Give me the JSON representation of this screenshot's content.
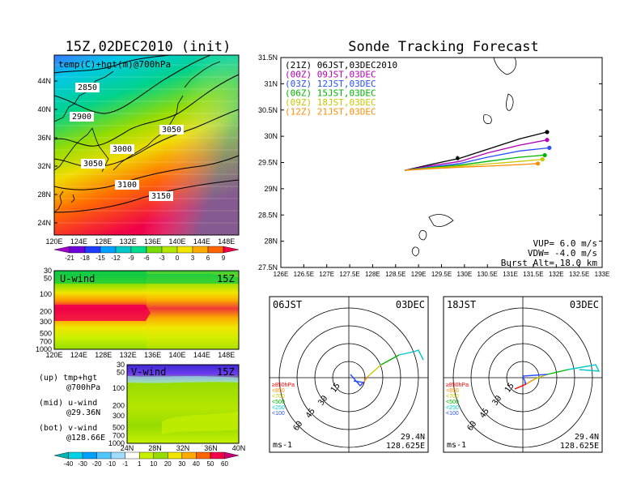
{
  "map_panel": {
    "title": "15Z,02DEC2010 (init)",
    "field_label": "temp(C)+hgt(m)@700hPa",
    "lon_ticks": [
      "120E",
      "124E",
      "128E",
      "132E",
      "136E",
      "140E",
      "144E",
      "148E"
    ],
    "lat_ticks": [
      "44N",
      "40N",
      "36N",
      "32N",
      "28N",
      "24N"
    ],
    "contour_labels": [
      "2850",
      "2900",
      "3000",
      "3050",
      "3050",
      "3100",
      "3150"
    ],
    "colorbar_labels": [
      "-21",
      "-18",
      "-15",
      "-12",
      "-9",
      "-6",
      "-3",
      "0",
      "3",
      "6",
      "9"
    ],
    "colorbar_colors": [
      "#a000c8",
      "#6e00dc",
      "#1e3cff",
      "#00a0ff",
      "#00c8c8",
      "#00dc8c",
      "#78dc00",
      "#b4e600",
      "#f0e600",
      "#ffaa00",
      "#ff6400",
      "#f00046"
    ]
  },
  "u_panel": {
    "title": "U-wind",
    "time": "15Z",
    "p_ticks": [
      "30",
      "50",
      "100",
      "200",
      "300",
      "500",
      "700",
      "1000"
    ],
    "lon_ticks": [
      "120E",
      "124E",
      "128E",
      "132E",
      "136E",
      "140E",
      "144E",
      "148E"
    ]
  },
  "v_panel": {
    "title": "V-wind",
    "time": "15Z",
    "p_ticks": [
      "30",
      "50",
      "100",
      "200",
      "300",
      "500",
      "700",
      "1000"
    ],
    "lat_ticks": [
      "24N",
      "28N",
      "32N",
      "36N",
      "40N"
    ],
    "colorbar_labels": [
      "-40",
      "-30",
      "-20",
      "-10",
      "-1",
      "1",
      "10",
      "20",
      "30",
      "40",
      "50",
      "60"
    ],
    "colorbar_colors": [
      "#00b4b4",
      "#00d2e6",
      "#00a0ff",
      "#50c8ff",
      "#a0dcff",
      "#ffffff",
      "#c8f000",
      "#96dc00",
      "#f0e600",
      "#ffaa00",
      "#ff6400",
      "#f00046",
      "#c80078"
    ]
  },
  "legend_text": {
    "l1a": "(up) tmp+hgt",
    "l1b": "@700hPa",
    "l2a": "(mid) u-wind",
    "l2b": "@29.36N",
    "l3a": "(bot) v-wind",
    "l3b": "@128.66E"
  },
  "tracking": {
    "title": "Sonde Tracking Forecast",
    "lat_ticks": [
      "31.5N",
      "31N",
      "30.5N",
      "30N",
      "29.5N",
      "29N",
      "28.5N",
      "28N",
      "27.5N"
    ],
    "lon_ticks": [
      "126E",
      "126.5E",
      "127E",
      "127.5E",
      "128E",
      "128.5E",
      "129E",
      "129.5E",
      "130E",
      "130.5E",
      "131E",
      "131.5E",
      "132E",
      "132.5E",
      "133E"
    ],
    "launches": [
      {
        "label": "(21Z)  06JST,03DEC2010",
        "color": "#000000"
      },
      {
        "label": "(00Z)  09JST,03DEC",
        "color": "#b400b4"
      },
      {
        "label": "(03Z)  12JST,03DEC",
        "color": "#2850ff"
      },
      {
        "label": "(06Z)  15JST,03DEC",
        "color": "#00b400"
      },
      {
        "label": "(09Z)  18JST,03DEC",
        "color": "#c8c800"
      },
      {
        "label": "(12Z)  21JST,03DEC",
        "color": "#ff8c00"
      }
    ],
    "vup": "VUP=  6.0 m/s",
    "vdw": "VDW= -4.0 m/s",
    "burst": "Burst Alt= 18.0 km"
  },
  "hodo_left": {
    "time": "06JST",
    "date": "03DEC",
    "ring_labels": [
      "15",
      "30",
      "45",
      "60"
    ],
    "unit": "ms-1",
    "lat": "29.4N",
    "lon": "128.625E",
    "layer_labels": [
      "≥850hPa",
      "<850",
      "<700",
      "<500",
      "<250",
      "<100"
    ]
  },
  "hodo_right": {
    "time": "18JST",
    "date": "03DEC",
    "ring_labels": [
      "15",
      "30",
      "45",
      "60"
    ],
    "unit": "ms-1",
    "lat": "29.4N",
    "lon": "128.625E",
    "layer_labels": [
      "≥850hPa",
      "<850",
      "<700",
      "<500",
      "<250",
      "<100"
    ]
  },
  "layer_colors": [
    "#ff0000",
    "#ff8c00",
    "#c8c800",
    "#00b400",
    "#00c8c8",
    "#2850ff"
  ],
  "chart_data": [
    {
      "type": "heatmap",
      "title": "15Z,02DEC2010 (init)",
      "field": "temp(C)+hgt(m)@700hPa",
      "x_range": [
        "120E",
        "150E"
      ],
      "y_range": [
        "22N",
        "47N"
      ],
      "contour_values": [
        2850,
        2900,
        3000,
        3050,
        3100,
        3150
      ]
    },
    {
      "type": "heatmap",
      "title": "U-wind",
      "x_range": [
        "120E",
        "150E"
      ],
      "y_axis": "pressure 1000-30"
    },
    {
      "type": "heatmap",
      "title": "V-wind",
      "x_range": [
        "24N",
        "40N"
      ],
      "y_axis": "pressure 1000-30"
    },
    {
      "type": "line",
      "title": "Sonde Tracking Forecast",
      "xlim": [
        126,
        133
      ],
      "ylim": [
        27.5,
        31.5
      ],
      "series": [
        {
          "name": "06JST,03DEC2010",
          "x": [
            128.7,
            129.2,
            129.9,
            130.5,
            131.2,
            131.8
          ],
          "y": [
            29.35,
            29.45,
            29.58,
            29.75,
            29.95,
            30.08
          ]
        },
        {
          "name": "09JST,03DEC",
          "x": [
            128.7,
            129.2,
            129.9,
            130.5,
            131.2,
            131.8
          ],
          "y": [
            29.35,
            29.43,
            29.52,
            29.68,
            29.83,
            29.93
          ]
        },
        {
          "name": "12JST,03DEC",
          "x": [
            128.7,
            129.2,
            129.9,
            130.5,
            131.2,
            131.85
          ],
          "y": [
            29.35,
            29.41,
            29.48,
            29.6,
            29.72,
            29.78
          ]
        },
        {
          "name": "15JST,03DEC",
          "x": [
            128.7,
            129.2,
            129.9,
            130.5,
            131.2,
            131.75
          ],
          "y": [
            29.35,
            29.4,
            29.45,
            29.52,
            29.6,
            29.64
          ]
        },
        {
          "name": "18JST,03DEC",
          "x": [
            128.7,
            129.2,
            129.9,
            130.5,
            131.2,
            131.7
          ],
          "y": [
            29.35,
            29.39,
            29.43,
            29.47,
            29.52,
            29.56
          ]
        },
        {
          "name": "21JST,03DEC",
          "x": [
            128.7,
            129.2,
            129.9,
            130.5,
            131.2,
            131.6
          ],
          "y": [
            29.35,
            29.38,
            29.41,
            29.43,
            29.46,
            29.48
          ]
        }
      ]
    }
  ]
}
